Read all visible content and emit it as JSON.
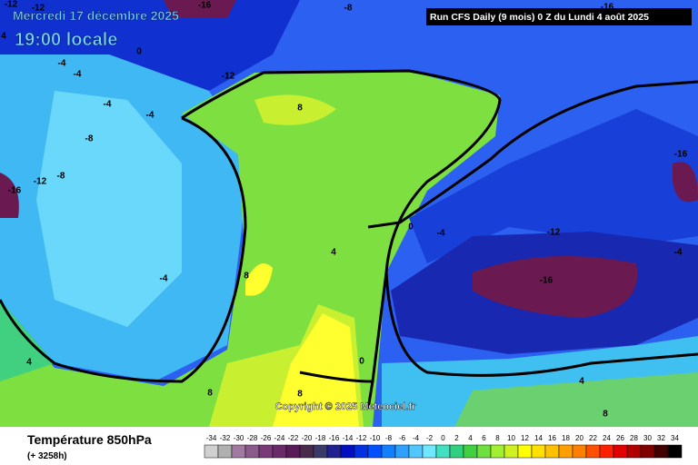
{
  "header": {
    "date": "Mercredi 17 décembre 2025",
    "time": "19:00 locale",
    "run": "Run CFS Daily (9 mois) 0 Z du Lundi 4 août 2025"
  },
  "map": {
    "copyright": "Copyright © 2025 Meteociel.fr",
    "contour_labels": [
      "-12",
      "-12",
      "-16",
      "-8",
      "-16",
      "4",
      "0",
      "-4",
      "-4",
      "-12",
      "-4",
      "-4",
      "8",
      "-8",
      "-8",
      "-12",
      "-16",
      "-16",
      "0",
      "-4",
      "-12",
      "4",
      "-4",
      "8",
      "-4",
      "-16",
      "4",
      "0",
      "8",
      "8",
      "4",
      "8"
    ]
  },
  "legend": {
    "title": "Température 850hPa",
    "lead": "(+ 3258h)",
    "scale": [
      {
        "label": "-34",
        "color": "#d0d0d0"
      },
      {
        "label": "-32",
        "color": "#b0b0b0"
      },
      {
        "label": "-30",
        "color": "#a07aa0"
      },
      {
        "label": "-28",
        "color": "#8a5a8a"
      },
      {
        "label": "-26",
        "color": "#7a3a7a"
      },
      {
        "label": "-24",
        "color": "#6a2a6a"
      },
      {
        "label": "-22",
        "color": "#5a1a5a"
      },
      {
        "label": "-20",
        "color": "#4a2a4a"
      },
      {
        "label": "-18",
        "color": "#3a3a6a"
      },
      {
        "label": "-16",
        "color": "#202090"
      },
      {
        "label": "-14",
        "color": "#0010c0"
      },
      {
        "label": "-12",
        "color": "#0030e0"
      },
      {
        "label": "-10",
        "color": "#0050ff"
      },
      {
        "label": "-8",
        "color": "#1080ff"
      },
      {
        "label": "-6",
        "color": "#30a0ff"
      },
      {
        "label": "-4",
        "color": "#50c8ff"
      },
      {
        "label": "-2",
        "color": "#70e8ff"
      },
      {
        "label": "0",
        "color": "#40e0c0"
      },
      {
        "label": "2",
        "color": "#30d080"
      },
      {
        "label": "4",
        "color": "#40d040"
      },
      {
        "label": "6",
        "color": "#70e040"
      },
      {
        "label": "8",
        "color": "#a0f030"
      },
      {
        "label": "10",
        "color": "#d0f020"
      },
      {
        "label": "12",
        "color": "#ffff00"
      },
      {
        "label": "14",
        "color": "#ffe000"
      },
      {
        "label": "16",
        "color": "#ffc000"
      },
      {
        "label": "18",
        "color": "#ffa000"
      },
      {
        "label": "20",
        "color": "#ff8000"
      },
      {
        "label": "22",
        "color": "#ff5000"
      },
      {
        "label": "24",
        "color": "#ff2000"
      },
      {
        "label": "26",
        "color": "#e00000"
      },
      {
        "label": "28",
        "color": "#b00000"
      },
      {
        "label": "30",
        "color": "#800000"
      },
      {
        "label": "32",
        "color": "#400000"
      },
      {
        "label": "34",
        "color": "#000000"
      }
    ]
  }
}
